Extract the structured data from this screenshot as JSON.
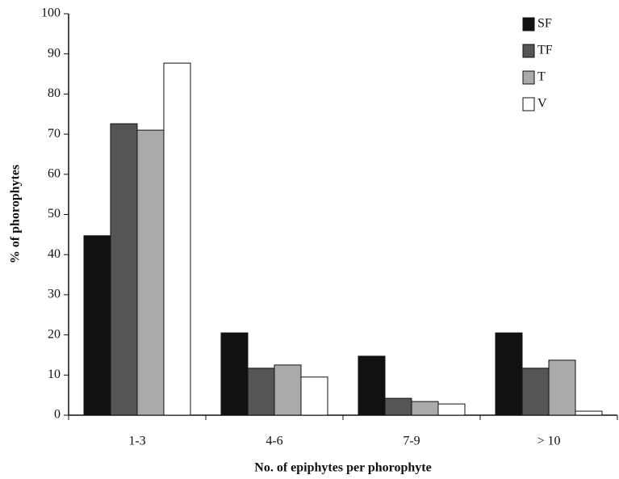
{
  "chart_data": {
    "type": "bar",
    "y_label": "% of phorophytes",
    "x_label": "No. of epiphytes per phorophyte",
    "categories": [
      "1-3",
      "4-6",
      "7-9",
      "> 10"
    ],
    "series": [
      {
        "name": "SF",
        "color": "#111111",
        "values": [
          44.7,
          20.5,
          14.7,
          20.5
        ]
      },
      {
        "name": "TF",
        "color": "#555555",
        "values": [
          72.6,
          11.7,
          4.2,
          11.7
        ]
      },
      {
        "name": "T",
        "color": "#aaaaaa",
        "values": [
          71.0,
          12.5,
          3.4,
          13.7
        ]
      },
      {
        "name": "V",
        "color": "#ffffff",
        "values": [
          87.7,
          9.5,
          2.8,
          1.0
        ]
      }
    ],
    "ylim": [
      0,
      100
    ],
    "yticks": [
      0,
      10,
      20,
      30,
      40,
      50,
      60,
      70,
      80,
      90,
      100
    ],
    "legend": "top-right"
  }
}
